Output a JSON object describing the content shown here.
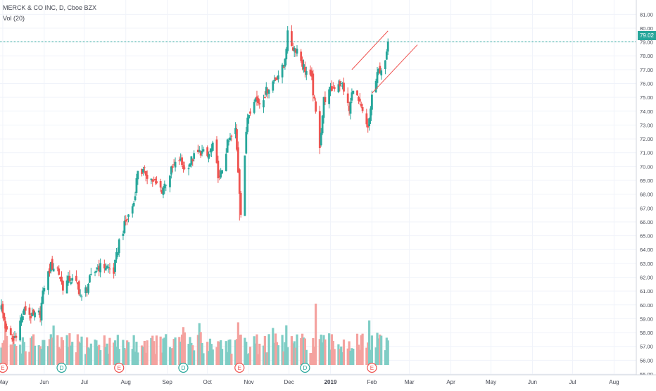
{
  "legend": {
    "title": "MERCK & CO INC, D, Cboe BZX",
    "volume": "Vol (20)"
  },
  "last_price": "79.02",
  "colors": {
    "up": "#26a69a",
    "down": "#ef5350",
    "vol_up": "#7fcdc5",
    "vol_down": "#f4a29f",
    "trend": "#ef5350",
    "grid": "#f0f3fa",
    "axis_text": "#434651",
    "last_line": "#26a69a"
  },
  "chart_data": {
    "type": "candlestick",
    "title": "MERCK & CO INC, D, Cboe BZX",
    "ylim": [
      55,
      81.5
    ],
    "y_ticks": [
      "81.00",
      "80.00",
      "79.00",
      "78.00",
      "77.00",
      "76.00",
      "75.00",
      "74.00",
      "73.00",
      "72.00",
      "71.00",
      "70.00",
      "69.00",
      "68.00",
      "67.00",
      "66.00",
      "65.00",
      "64.00",
      "63.00",
      "62.00",
      "61.00",
      "60.00",
      "59.00",
      "58.00",
      "57.00",
      "56.00",
      "55.00"
    ],
    "x_ticks": [
      "May",
      "Jun",
      "Jul",
      "Aug",
      "Sep",
      "Oct",
      "Nov",
      "Dec",
      "2019",
      "Feb",
      "Mar",
      "Apr",
      "May",
      "Jun",
      "Jul",
      "Aug"
    ],
    "period": {
      "start": "2018-04-30",
      "end": "2019-02-13",
      "frequency": "daily"
    },
    "last_value": 79.02,
    "price_path": [
      [
        "2018-04-30",
        59.8
      ],
      [
        "2018-05-04",
        58.0
      ],
      [
        "2018-05-09",
        57.4
      ],
      [
        "2018-05-14",
        58.8
      ],
      [
        "2018-05-18",
        59.7
      ],
      [
        "2018-05-23",
        59.1
      ],
      [
        "2018-05-29",
        59.4
      ],
      [
        "2018-06-01",
        61.4
      ],
      [
        "2018-06-06",
        62.8
      ],
      [
        "2018-06-11",
        62.6
      ],
      [
        "2018-06-15",
        61.3
      ],
      [
        "2018-06-20",
        61.9
      ],
      [
        "2018-06-26",
        61.4
      ],
      [
        "2018-06-29",
        60.4
      ],
      [
        "2018-07-05",
        61.8
      ],
      [
        "2018-07-11",
        62.7
      ],
      [
        "2018-07-17",
        62.8
      ],
      [
        "2018-07-23",
        62.4
      ],
      [
        "2018-07-27",
        64.6
      ],
      [
        "2018-08-01",
        66.0
      ],
      [
        "2018-08-07",
        67.4
      ],
      [
        "2018-08-10",
        69.8
      ],
      [
        "2018-08-16",
        69.5
      ],
      [
        "2018-08-22",
        68.9
      ],
      [
        "2018-08-28",
        68.3
      ],
      [
        "2018-09-04",
        69.7
      ],
      [
        "2018-09-10",
        70.5
      ],
      [
        "2018-09-14",
        69.8
      ],
      [
        "2018-09-20",
        70.6
      ],
      [
        "2018-09-26",
        71.1
      ],
      [
        "2018-10-01",
        70.7
      ],
      [
        "2018-10-05",
        71.4
      ],
      [
        "2018-10-10",
        69.0
      ],
      [
        "2018-10-16",
        71.6
      ],
      [
        "2018-10-22",
        72.6
      ],
      [
        "2018-10-26",
        66.8
      ],
      [
        "2018-10-31",
        73.6
      ],
      [
        "2018-11-05",
        75.0
      ],
      [
        "2018-11-09",
        74.6
      ],
      [
        "2018-11-15",
        75.6
      ],
      [
        "2018-11-21",
        76.4
      ],
      [
        "2018-11-27",
        77.2
      ],
      [
        "2018-11-30",
        79.5
      ],
      [
        "2018-12-04",
        78.6
      ],
      [
        "2018-12-07",
        78.5
      ],
      [
        "2018-12-12",
        77.2
      ],
      [
        "2018-12-18",
        76.2
      ],
      [
        "2018-12-21",
        73.8
      ],
      [
        "2018-12-24",
        71.6
      ],
      [
        "2018-12-27",
        74.8
      ],
      [
        "2019-01-02",
        75.6
      ],
      [
        "2019-01-07",
        76.1
      ],
      [
        "2019-01-11",
        75.6
      ],
      [
        "2019-01-15",
        74.0
      ],
      [
        "2019-01-18",
        75.8
      ],
      [
        "2019-01-24",
        74.1
      ],
      [
        "2019-01-29",
        72.6
      ],
      [
        "2019-02-01",
        75.1
      ],
      [
        "2019-02-06",
        76.9
      ],
      [
        "2019-02-11",
        77.4
      ],
      [
        "2019-02-13",
        79.02
      ]
    ],
    "volume_series": {
      "name": "Vol (20)"
    },
    "events": [
      {
        "label": "E",
        "date": "2018-05-01",
        "kind": "earnings"
      },
      {
        "label": "D",
        "date": "2018-06-14",
        "kind": "dividend"
      },
      {
        "label": "E",
        "date": "2018-07-27",
        "kind": "earnings"
      },
      {
        "label": "D",
        "date": "2018-09-13",
        "kind": "dividend"
      },
      {
        "label": "E",
        "date": "2018-10-25",
        "kind": "earnings"
      },
      {
        "label": "D",
        "date": "2018-12-13",
        "kind": "dividend"
      },
      {
        "label": "E",
        "date": "2019-02-01",
        "kind": "earnings"
      }
    ],
    "trendlines": [
      {
        "from": [
          "2019-01-17",
          77.0
        ],
        "to": [
          "2019-02-13",
          79.8
        ]
      },
      {
        "from": [
          "2019-02-01",
          75.3
        ],
        "to": [
          "2019-03-07",
          78.8
        ]
      }
    ]
  }
}
